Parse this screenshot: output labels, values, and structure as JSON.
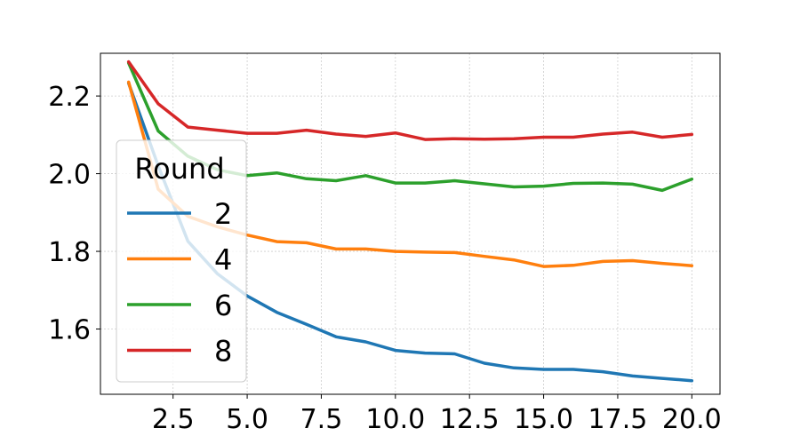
{
  "chart_data": {
    "type": "line",
    "title": "",
    "xlabel": "",
    "ylabel": "",
    "xlim": [
      0.05,
      20.95
    ],
    "ylim": [
      1.432,
      2.31
    ],
    "x_ticks": [
      2.5,
      5.0,
      7.5,
      10.0,
      12.5,
      15.0,
      17.5,
      20.0
    ],
    "x_tick_labels": [
      "2.5",
      "5.0",
      "7.5",
      "10.0",
      "12.5",
      "15.0",
      "17.5",
      "20.0"
    ],
    "y_ticks": [
      1.6,
      1.8,
      2.0,
      2.2
    ],
    "y_tick_labels": [
      "1.6",
      "1.8",
      "2.0",
      "2.2"
    ],
    "grid": true,
    "legend": {
      "title": "Round",
      "placement": "center-left"
    },
    "x": [
      1,
      2,
      3,
      4,
      5,
      6,
      7,
      8,
      9,
      10,
      11,
      12,
      13,
      14,
      15,
      16,
      17,
      18,
      19,
      20
    ],
    "series": [
      {
        "name": "2",
        "color": "#1f77b4",
        "values": [
          2.233,
          2.02,
          1.826,
          1.742,
          1.685,
          1.643,
          1.612,
          1.58,
          1.567,
          1.545,
          1.538,
          1.536,
          1.512,
          1.5,
          1.496,
          1.496,
          1.49,
          1.479,
          1.473,
          1.467
        ]
      },
      {
        "name": "4",
        "color": "#ff7f0e",
        "values": [
          2.236,
          1.96,
          1.89,
          1.863,
          1.842,
          1.825,
          1.822,
          1.806,
          1.806,
          1.8,
          1.798,
          1.797,
          1.787,
          1.778,
          1.761,
          1.764,
          1.774,
          1.776,
          1.769,
          1.763
        ]
      },
      {
        "name": "6",
        "color": "#2ca02c",
        "values": [
          2.285,
          2.11,
          2.045,
          2.01,
          1.995,
          2.002,
          1.987,
          1.982,
          1.995,
          1.976,
          1.976,
          1.982,
          1.974,
          1.966,
          1.968,
          1.975,
          1.976,
          1.973,
          1.957,
          1.986
        ]
      },
      {
        "name": "8",
        "color": "#d62728",
        "values": [
          2.288,
          2.18,
          2.12,
          2.112,
          2.104,
          2.104,
          2.112,
          2.102,
          2.096,
          2.105,
          2.088,
          2.09,
          2.089,
          2.09,
          2.094,
          2.094,
          2.102,
          2.107,
          2.094,
          2.101
        ]
      }
    ]
  }
}
